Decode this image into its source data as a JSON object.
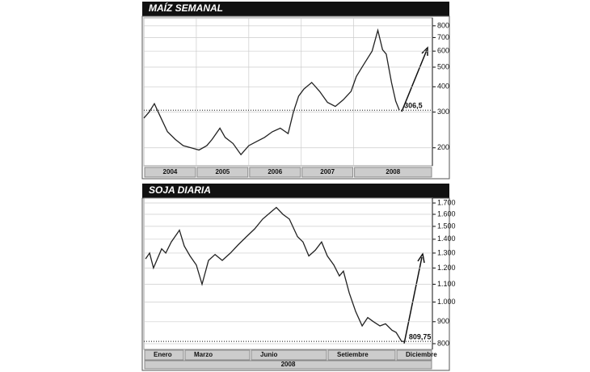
{
  "chart_data": [
    {
      "type": "line",
      "title": "MAÍZ SEMANAL",
      "log_y": true,
      "color": "#222222",
      "x": [
        2004.0,
        2004.1,
        2004.2,
        2004.3,
        2004.45,
        2004.6,
        2004.75,
        2004.9,
        2005.05,
        2005.2,
        2005.3,
        2005.45,
        2005.55,
        2005.7,
        2005.85,
        2006.0,
        2006.15,
        2006.3,
        2006.45,
        2006.6,
        2006.75,
        2006.85,
        2006.95,
        2007.05,
        2007.2,
        2007.35,
        2007.5,
        2007.65,
        2007.8,
        2007.95,
        2008.05,
        2008.2,
        2008.35,
        2008.46,
        2008.55,
        2008.62,
        2008.72,
        2008.8,
        2008.87
      ],
      "values": [
        280,
        300,
        330,
        290,
        240,
        220,
        205,
        200,
        195,
        205,
        220,
        250,
        225,
        210,
        185,
        205,
        215,
        225,
        240,
        250,
        235,
        300,
        360,
        390,
        420,
        380,
        335,
        320,
        345,
        380,
        450,
        520,
        600,
        760,
        610,
        580,
        420,
        340,
        306.5
      ],
      "xlim": [
        2004,
        2009.5
      ],
      "xticks": [
        2004,
        2005,
        2006,
        2007,
        2008
      ],
      "ylim": [
        163,
        876
      ],
      "yticks": [
        200,
        300,
        400,
        500,
        600,
        700,
        800
      ],
      "reference": {
        "value": 306.5,
        "label": "306,5"
      },
      "grid": true
    },
    {
      "type": "line",
      "title": "SOJA DIARIA",
      "log_y": true,
      "color": "#222222",
      "x": [
        1.07,
        1.24,
        1.4,
        1.74,
        1.91,
        2.14,
        2.41,
        2.48,
        2.68,
        2.92,
        3.18,
        3.42,
        3.69,
        3.96,
        4.26,
        4.6,
        4.93,
        5.27,
        5.61,
        5.94,
        6.28,
        6.51,
        6.78,
        7.05,
        7.39,
        7.62,
        7.86,
        8.13,
        8.39,
        8.63,
        8.9,
        9.13,
        9.3,
        9.54,
        9.81,
        10.08,
        10.31,
        10.55,
        10.82,
        11.05,
        11.32,
        11.49,
        11.72,
        11.82
      ],
      "values": [
        1260,
        1300,
        1200,
        1330,
        1300,
        1380,
        1450,
        1470,
        1350,
        1280,
        1220,
        1100,
        1250,
        1290,
        1250,
        1300,
        1360,
        1420,
        1480,
        1560,
        1620,
        1660,
        1600,
        1560,
        1420,
        1380,
        1280,
        1320,
        1380,
        1280,
        1220,
        1150,
        1180,
        1050,
        950,
        880,
        920,
        900,
        880,
        890,
        860,
        850,
        810,
        809.75
      ],
      "xlim": [
        1,
        13
      ],
      "categories": [
        "Enero",
        "Marzo",
        "Junio",
        "Setiembre",
        "Diciembre"
      ],
      "x_label": "2008",
      "ylim": [
        776,
        1745
      ],
      "yticks": [
        800,
        900,
        {
          "value": 1000,
          "label": "1.000"
        },
        {
          "value": 1100,
          "label": "1.100"
        },
        {
          "value": 1200,
          "label": "1.200"
        },
        {
          "value": 1300,
          "label": "1.300"
        },
        {
          "value": 1400,
          "label": "1.400"
        },
        {
          "value": 1500,
          "label": "1.500"
        },
        {
          "value": 1600,
          "label": "1.600"
        },
        {
          "value": 1700,
          "label": "1.700"
        }
      ],
      "reference": {
        "value": 809.75,
        "label": "809,75"
      },
      "grid": true
    }
  ]
}
